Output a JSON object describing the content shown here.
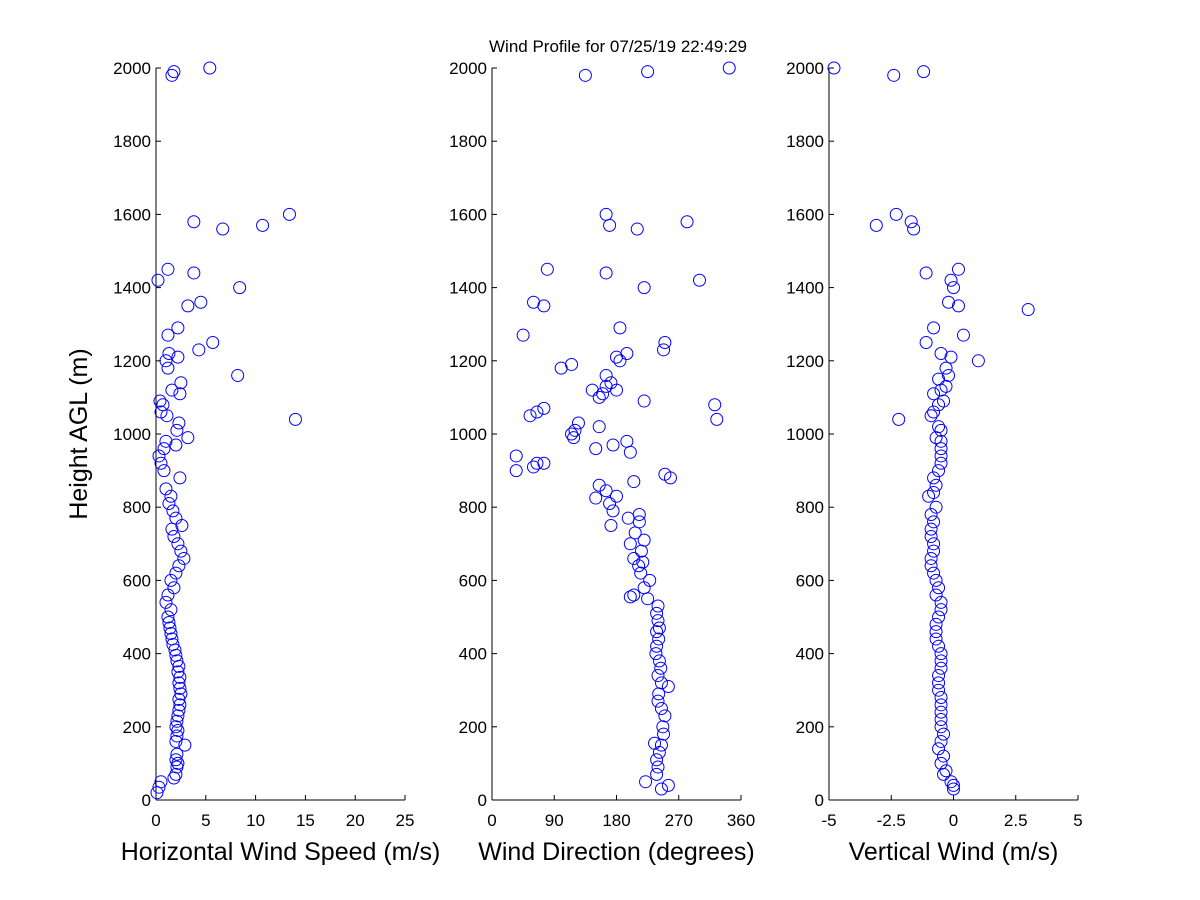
{
  "figure": {
    "title": "Wind Profile for  07/25/19 22:49:29",
    "marker_color": "#0000ff",
    "background": "#ffffff"
  },
  "chart_data": [
    {
      "type": "scatter",
      "xlabel": "Horizontal Wind Speed (m/s)",
      "ylabel": "Height AGL (m)",
      "xlim": [
        0,
        25
      ],
      "ylim": [
        0,
        2000
      ],
      "xticks": [
        "0",
        "5",
        "10",
        "15",
        "20",
        "25"
      ],
      "yticks": [
        "0",
        "200",
        "400",
        "600",
        "800",
        "1000",
        "1200",
        "1400",
        "1600",
        "1800",
        "2000"
      ],
      "grid": false,
      "marker": "open-circle",
      "points": [
        [
          0.1,
          20
        ],
        [
          0.3,
          35
        ],
        [
          0.5,
          50
        ],
        [
          1.8,
          60
        ],
        [
          2.0,
          70
        ],
        [
          2.1,
          90
        ],
        [
          2.2,
          100
        ],
        [
          2.0,
          110
        ],
        [
          2.1,
          125
        ],
        [
          2.9,
          150
        ],
        [
          2.0,
          160
        ],
        [
          2.1,
          175
        ],
        [
          2.2,
          190
        ],
        [
          2.0,
          200
        ],
        [
          2.1,
          215
        ],
        [
          2.2,
          230
        ],
        [
          2.3,
          245
        ],
        [
          2.4,
          260
        ],
        [
          2.3,
          275
        ],
        [
          2.5,
          290
        ],
        [
          2.4,
          305
        ],
        [
          2.3,
          320
        ],
        [
          2.4,
          335
        ],
        [
          2.2,
          350
        ],
        [
          2.3,
          365
        ],
        [
          2.1,
          380
        ],
        [
          2.0,
          395
        ],
        [
          1.9,
          410
        ],
        [
          1.7,
          425
        ],
        [
          1.6,
          440
        ],
        [
          1.5,
          455
        ],
        [
          1.4,
          470
        ],
        [
          1.3,
          485
        ],
        [
          1.2,
          500
        ],
        [
          1.5,
          520
        ],
        [
          1.0,
          540
        ],
        [
          1.2,
          560
        ],
        [
          1.8,
          580
        ],
        [
          1.5,
          600
        ],
        [
          2.0,
          620
        ],
        [
          2.3,
          640
        ],
        [
          2.8,
          660
        ],
        [
          2.5,
          680
        ],
        [
          2.2,
          700
        ],
        [
          1.8,
          720
        ],
        [
          1.6,
          740
        ],
        [
          2.6,
          750
        ],
        [
          2.0,
          770
        ],
        [
          1.7,
          790
        ],
        [
          1.3,
          810
        ],
        [
          1.5,
          830
        ],
        [
          1.0,
          850
        ],
        [
          2.4,
          880
        ],
        [
          0.8,
          900
        ],
        [
          0.5,
          920
        ],
        [
          0.3,
          940
        ],
        [
          0.8,
          960
        ],
        [
          2.0,
          970
        ],
        [
          1.0,
          980
        ],
        [
          3.2,
          990
        ],
        [
          2.1,
          1010
        ],
        [
          2.3,
          1030
        ],
        [
          14.0,
          1040
        ],
        [
          1.1,
          1050
        ],
        [
          0.5,
          1060
        ],
        [
          0.7,
          1080
        ],
        [
          0.4,
          1090
        ],
        [
          2.4,
          1110
        ],
        [
          1.6,
          1120
        ],
        [
          2.5,
          1140
        ],
        [
          8.2,
          1160
        ],
        [
          1.2,
          1180
        ],
        [
          1.0,
          1200
        ],
        [
          2.2,
          1210
        ],
        [
          1.3,
          1220
        ],
        [
          5.7,
          1250
        ],
        [
          4.3,
          1230
        ],
        [
          1.2,
          1270
        ],
        [
          2.2,
          1290
        ],
        [
          3.2,
          1350
        ],
        [
          4.5,
          1360
        ],
        [
          8.4,
          1400
        ],
        [
          0.2,
          1420
        ],
        [
          3.8,
          1440
        ],
        [
          1.2,
          1450
        ],
        [
          6.7,
          1560
        ],
        [
          10.7,
          1570
        ],
        [
          3.8,
          1580
        ],
        [
          13.4,
          1600
        ],
        [
          1.6,
          1980
        ],
        [
          1.8,
          1990
        ],
        [
          5.4,
          2000
        ]
      ]
    },
    {
      "type": "scatter",
      "xlabel": "Wind Direction (degrees)",
      "ylabel": "",
      "xlim": [
        0,
        360
      ],
      "ylim": [
        0,
        2000
      ],
      "xticks": [
        "0",
        "90",
        "180",
        "270",
        "360"
      ],
      "yticks": [
        "0",
        "200",
        "400",
        "600",
        "800",
        "1000",
        "1200",
        "1400",
        "1600",
        "1800",
        "2000"
      ],
      "grid": false,
      "marker": "open-circle",
      "points": [
        [
          245,
          30
        ],
        [
          255,
          40
        ],
        [
          222,
          50
        ],
        [
          238,
          70
        ],
        [
          240,
          90
        ],
        [
          238,
          110
        ],
        [
          242,
          130
        ],
        [
          245,
          150
        ],
        [
          235,
          155
        ],
        [
          248,
          180
        ],
        [
          247,
          200
        ],
        [
          250,
          230
        ],
        [
          245,
          250
        ],
        [
          240,
          270
        ],
        [
          241,
          290
        ],
        [
          255,
          310
        ],
        [
          245,
          320
        ],
        [
          240,
          340
        ],
        [
          244,
          360
        ],
        [
          242,
          380
        ],
        [
          237,
          400
        ],
        [
          238,
          420
        ],
        [
          241,
          440
        ],
        [
          238,
          460
        ],
        [
          242,
          470
        ],
        [
          240,
          490
        ],
        [
          238,
          510
        ],
        [
          240,
          530
        ],
        [
          225,
          550
        ],
        [
          205,
          560
        ],
        [
          200,
          555
        ],
        [
          220,
          580
        ],
        [
          228,
          600
        ],
        [
          215,
          620
        ],
        [
          212,
          640
        ],
        [
          218,
          650
        ],
        [
          205,
          660
        ],
        [
          216,
          680
        ],
        [
          200,
          700
        ],
        [
          220,
          710
        ],
        [
          207,
          730
        ],
        [
          213,
          760
        ],
        [
          213,
          780
        ],
        [
          197,
          770
        ],
        [
          172,
          750
        ],
        [
          175,
          790
        ],
        [
          170,
          810
        ],
        [
          180,
          830
        ],
        [
          165,
          845
        ],
        [
          150,
          825
        ],
        [
          155,
          860
        ],
        [
          205,
          870
        ],
        [
          258,
          880
        ],
        [
          250,
          890
        ],
        [
          35,
          900
        ],
        [
          60,
          910
        ],
        [
          65,
          920
        ],
        [
          75,
          920
        ],
        [
          35,
          940
        ],
        [
          200,
          950
        ],
        [
          150,
          960
        ],
        [
          175,
          970
        ],
        [
          195,
          980
        ],
        [
          118,
          990
        ],
        [
          115,
          1000
        ],
        [
          120,
          1010
        ],
        [
          125,
          1030
        ],
        [
          155,
          1020
        ],
        [
          325,
          1040
        ],
        [
          55,
          1050
        ],
        [
          65,
          1060
        ],
        [
          75,
          1070
        ],
        [
          322,
          1080
        ],
        [
          220,
          1090
        ],
        [
          155,
          1100
        ],
        [
          160,
          1110
        ],
        [
          145,
          1120
        ],
        [
          165,
          1130
        ],
        [
          180,
          1120
        ],
        [
          172,
          1140
        ],
        [
          165,
          1160
        ],
        [
          100,
          1180
        ],
        [
          115,
          1190
        ],
        [
          185,
          1200
        ],
        [
          180,
          1210
        ],
        [
          195,
          1220
        ],
        [
          248,
          1230
        ],
        [
          250,
          1250
        ],
        [
          45,
          1270
        ],
        [
          185,
          1290
        ],
        [
          75,
          1350
        ],
        [
          60,
          1360
        ],
        [
          220,
          1400
        ],
        [
          300,
          1420
        ],
        [
          165,
          1440
        ],
        [
          80,
          1450
        ],
        [
          210,
          1560
        ],
        [
          170,
          1570
        ],
        [
          282,
          1580
        ],
        [
          165,
          1600
        ],
        [
          135,
          1980
        ],
        [
          225,
          1990
        ],
        [
          343,
          2000
        ]
      ]
    },
    {
      "type": "scatter",
      "xlabel": "Vertical Wind (m/s)",
      "ylabel": "",
      "xlim": [
        -5,
        5
      ],
      "ylim": [
        0,
        2000
      ],
      "xticks": [
        "-5",
        "-2.5",
        "0",
        "2.5",
        "5"
      ],
      "yticks": [
        "0",
        "200",
        "400",
        "600",
        "800",
        "1000",
        "1200",
        "1400",
        "1600",
        "1800",
        "2000"
      ],
      "grid": false,
      "marker": "open-circle",
      "points": [
        [
          0,
          30
        ],
        [
          0,
          40
        ],
        [
          -0.1,
          50
        ],
        [
          -0.4,
          70
        ],
        [
          -0.3,
          80
        ],
        [
          -0.5,
          100
        ],
        [
          -0.4,
          120
        ],
        [
          -0.6,
          140
        ],
        [
          -0.5,
          160
        ],
        [
          -0.4,
          180
        ],
        [
          -0.5,
          200
        ],
        [
          -0.5,
          220
        ],
        [
          -0.5,
          240
        ],
        [
          -0.5,
          260
        ],
        [
          -0.5,
          280
        ],
        [
          -0.6,
          300
        ],
        [
          -0.6,
          320
        ],
        [
          -0.6,
          340
        ],
        [
          -0.5,
          360
        ],
        [
          -0.5,
          380
        ],
        [
          -0.5,
          400
        ],
        [
          -0.6,
          420
        ],
        [
          -0.7,
          440
        ],
        [
          -0.7,
          460
        ],
        [
          -0.7,
          480
        ],
        [
          -0.6,
          500
        ],
        [
          -0.5,
          520
        ],
        [
          -0.5,
          540
        ],
        [
          -0.7,
          560
        ],
        [
          -0.6,
          580
        ],
        [
          -0.7,
          600
        ],
        [
          -0.8,
          620
        ],
        [
          -0.9,
          640
        ],
        [
          -0.9,
          660
        ],
        [
          -0.8,
          680
        ],
        [
          -0.8,
          700
        ],
        [
          -0.9,
          720
        ],
        [
          -0.9,
          740
        ],
        [
          -0.8,
          760
        ],
        [
          -0.9,
          780
        ],
        [
          -0.7,
          800
        ],
        [
          -1.0,
          830
        ],
        [
          -0.8,
          840
        ],
        [
          -0.7,
          860
        ],
        [
          -0.8,
          880
        ],
        [
          -0.6,
          900
        ],
        [
          -0.5,
          920
        ],
        [
          -0.5,
          940
        ],
        [
          -0.5,
          960
        ],
        [
          -0.5,
          980
        ],
        [
          -0.7,
          990
        ],
        [
          -0.5,
          1010
        ],
        [
          -0.6,
          1020
        ],
        [
          -2.2,
          1040
        ],
        [
          -0.9,
          1050
        ],
        [
          -0.8,
          1060
        ],
        [
          -0.6,
          1080
        ],
        [
          -0.4,
          1090
        ],
        [
          -0.8,
          1110
        ],
        [
          -0.5,
          1120
        ],
        [
          -0.3,
          1130
        ],
        [
          -0.6,
          1150
        ],
        [
          -0.2,
          1160
        ],
        [
          -0.3,
          1180
        ],
        [
          1.0,
          1200
        ],
        [
          -0.1,
          1210
        ],
        [
          -0.5,
          1220
        ],
        [
          -1.1,
          1250
        ],
        [
          0.4,
          1270
        ],
        [
          -0.8,
          1290
        ],
        [
          3.0,
          1340
        ],
        [
          0.2,
          1350
        ],
        [
          -0.2,
          1360
        ],
        [
          0,
          1400
        ],
        [
          -0.1,
          1420
        ],
        [
          -1.1,
          1440
        ],
        [
          0.2,
          1450
        ],
        [
          -3.1,
          1570
        ],
        [
          -1.6,
          1560
        ],
        [
          -1.7,
          1580
        ],
        [
          -2.3,
          1600
        ],
        [
          -1.2,
          1990
        ],
        [
          -2.4,
          1980
        ],
        [
          -4.8,
          2000
        ]
      ]
    }
  ]
}
